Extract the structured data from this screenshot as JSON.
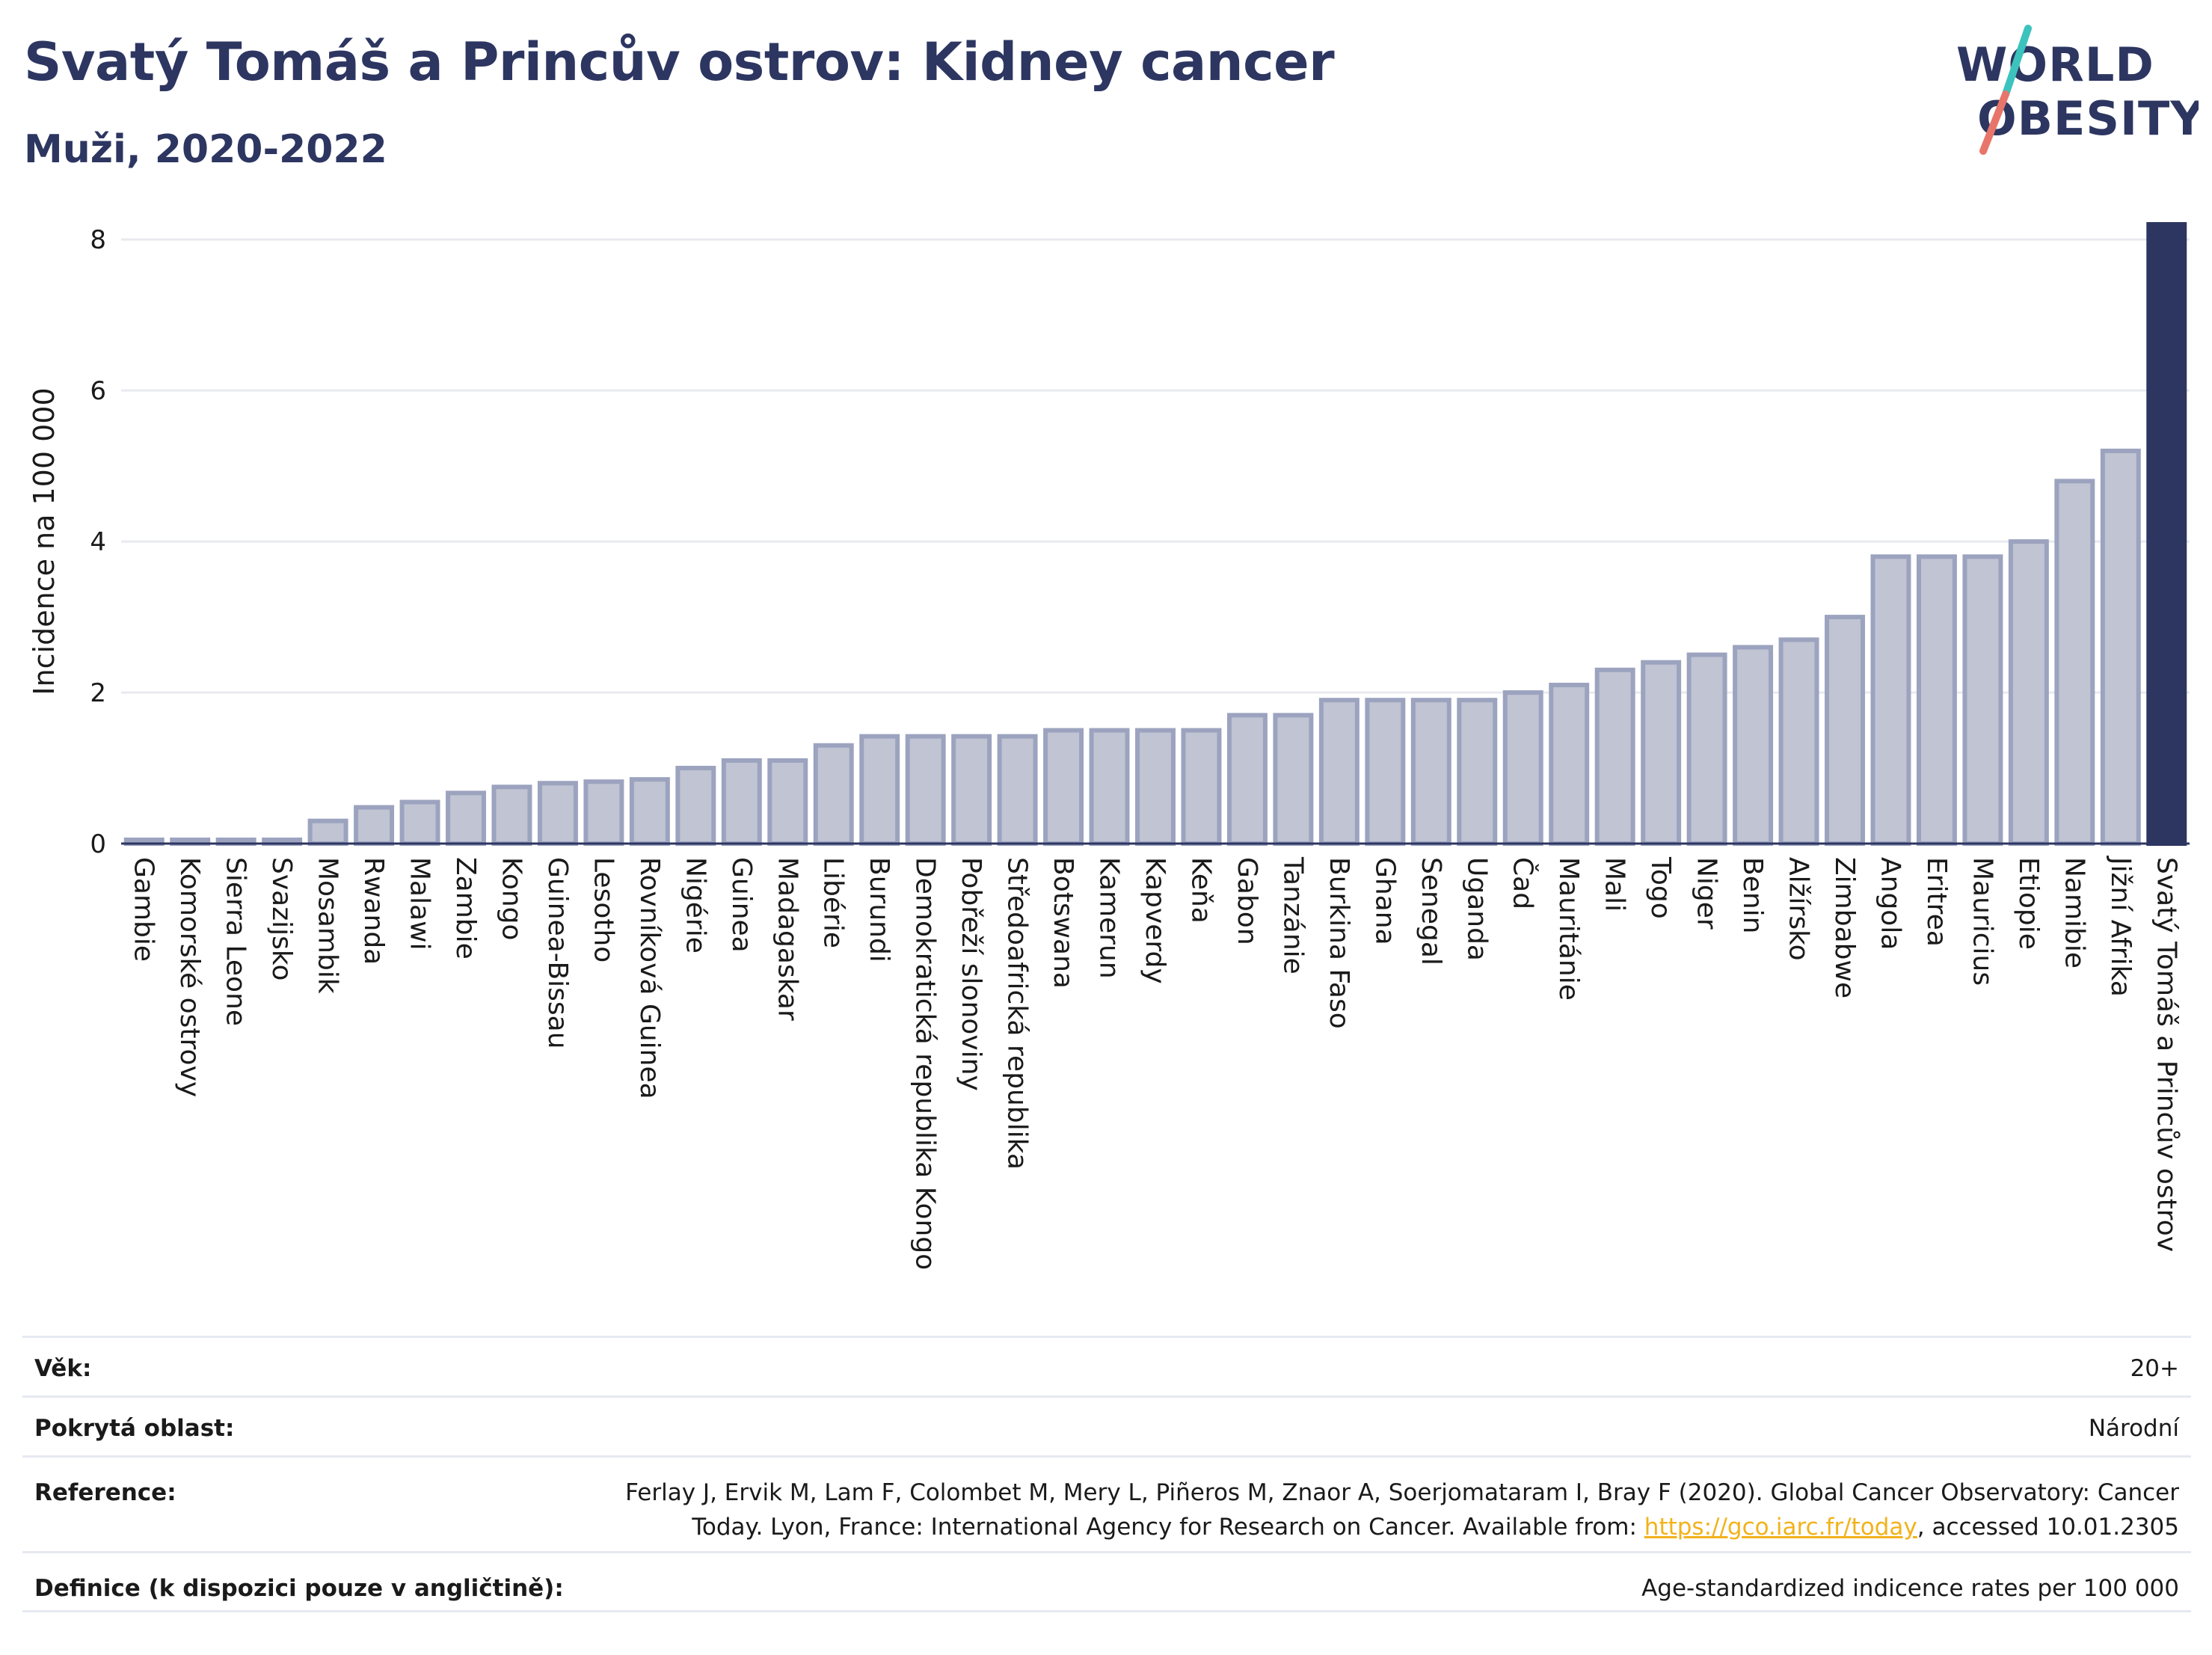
{
  "title": "Svatý Tomáš a Princův ostrov: Kidney cancer",
  "subtitle": "Muži, 2020-2022",
  "logo": {
    "line1": "WORLD",
    "line2": "OBESITY"
  },
  "colors": {
    "bar": "#c0c4d3",
    "bar_edge": "#9ca3bf",
    "highlight": "#2d3661",
    "grid": "#e8eaf0",
    "logo_teal": "#3cc3bd",
    "logo_coral": "#e8756a",
    "link": "#f2b21b"
  },
  "chart_data": {
    "type": "bar",
    "ylabel": "Incidence na 100 000",
    "ylim": [
      0,
      8.2
    ],
    "yticks": [
      0,
      2,
      4,
      6,
      8
    ],
    "highlight": "Svatý Tomáš a Princův ostrov",
    "categories": [
      "Gambie",
      "Komorské ostrovy",
      "Sierra Leone",
      "Svazijsko",
      "Mosambik",
      "Rwanda",
      "Malawi",
      "Zambie",
      "Kongo",
      "Guinea-Bissau",
      "Lesotho",
      "Rovníková Guinea",
      "Nigérie",
      "Guinea",
      "Madagaskar",
      "Libérie",
      "Burundi",
      "Demokratická republika Kongo",
      "Pobřeží slonoviny",
      "Středoafrická republika",
      "Botswana",
      "Kamerun",
      "Kapverdy",
      "Keňa",
      "Gabon",
      "Tanzánie",
      "Burkina Faso",
      "Ghana",
      "Senegal",
      "Uganda",
      "Čad",
      "Mauritánie",
      "Mali",
      "Togo",
      "Niger",
      "Benin",
      "Alžírsko",
      "Zimbabwe",
      "Angola",
      "Eritrea",
      "Mauricius",
      "Etiopie",
      "Namibie",
      "Jižní Afrika",
      "Svatý Tomáš a Princův ostrov"
    ],
    "values": [
      0.05,
      0.05,
      0.05,
      0.05,
      0.3,
      0.48,
      0.55,
      0.67,
      0.75,
      0.8,
      0.82,
      0.85,
      1.0,
      1.1,
      1.1,
      1.3,
      1.42,
      1.42,
      1.42,
      1.42,
      1.5,
      1.5,
      1.5,
      1.5,
      1.7,
      1.7,
      1.9,
      1.9,
      1.9,
      1.9,
      2.0,
      2.1,
      2.3,
      2.4,
      2.5,
      2.6,
      2.7,
      3.0,
      3.8,
      3.8,
      3.8,
      4.0,
      4.8,
      5.2,
      8.2
    ]
  },
  "footer": {
    "age_label": "Věk:",
    "age_value": "20+",
    "area_label": "Pokrytá oblast:",
    "area_value": "Národní",
    "ref_label": "Reference:",
    "ref_line1": "Ferlay J, Ervik M, Lam F, Colombet M, Mery L, Piñeros M, Znaor A, Soerjomataram I, Bray F (2020). Global Cancer Observatory: Cancer",
    "ref_line2_pre": "Today. Lyon, France: International Agency for Research on Cancer. Available from: ",
    "ref_link": "https://gco.iarc.fr/today",
    "ref_line2_post": ", accessed 10.01.2305",
    "def_label": "Definice (k dispozici pouze v angličtině):",
    "def_value": "Age-standardized indicence rates per 100 000"
  }
}
